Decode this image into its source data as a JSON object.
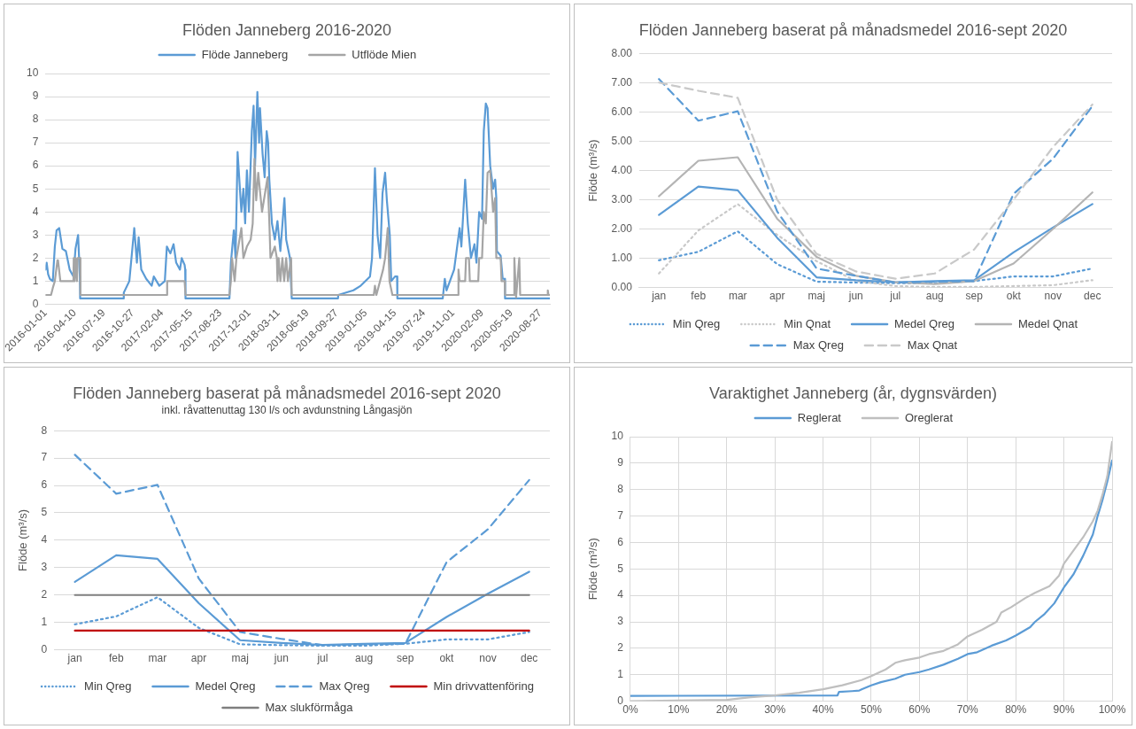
{
  "chart_data": [
    {
      "type": "line",
      "title": "Flöden Janneberg 2016-2020",
      "legend": "top",
      "grid": "y",
      "xlim": [
        "2016-01-01",
        "2020-09-29"
      ],
      "xticks": [
        "2016-01-01",
        "2016-04-10",
        "2016-07-19",
        "2016-10-27",
        "2017-02-04",
        "2017-05-15",
        "2017-08-23",
        "2017-12-01",
        "2018-03-11",
        "2018-06-19",
        "2018-09-27",
        "2019-01-05",
        "2019-04-15",
        "2019-07-24",
        "2019-11-01",
        "2020-02-09",
        "2020-05-19",
        "2020-08-27"
      ],
      "ylim": [
        0,
        10
      ],
      "yticks": [
        0,
        1,
        2,
        3,
        4,
        5,
        6,
        7,
        8,
        9,
        10
      ],
      "series": [
        {
          "name": "Flöde Janneberg",
          "color": "#5b9bd5",
          "x": [
            "2016-01-01",
            "2016-01-05",
            "2016-01-10",
            "2016-01-16",
            "2016-01-26",
            "2016-02-02",
            "2016-02-08",
            "2016-02-17",
            "2016-02-28",
            "2016-03-11",
            "2016-03-24",
            "2016-04-06",
            "2016-04-13",
            "2016-04-22",
            "2016-04-28",
            "2016-04-29",
            "2016-09-25",
            "2016-09-26",
            "2016-10-15",
            "2016-11-01",
            "2016-11-10",
            "2016-11-16",
            "2016-11-25",
            "2016-12-12",
            "2016-12-31",
            "2017-01-07",
            "2017-01-26",
            "2017-02-14",
            "2017-02-21",
            "2017-03-05",
            "2017-03-16",
            "2017-03-25",
            "2017-04-07",
            "2017-04-13",
            "2017-04-23",
            "2017-04-25",
            "2017-04-26",
            "2017-09-24",
            "2017-09-29",
            "2017-10-09",
            "2017-10-15",
            "2017-10-22",
            "2017-11-04",
            "2017-11-11",
            "2017-11-17",
            "2017-11-23",
            "2017-11-30",
            "2017-12-10",
            "2017-12-16",
            "2017-12-21",
            "2017-12-29",
            "2018-01-04",
            "2018-01-07",
            "2018-01-16",
            "2018-01-23",
            "2018-01-30",
            "2018-02-04",
            "2018-02-08",
            "2018-02-17",
            "2018-02-27",
            "2018-03-08",
            "2018-03-18",
            "2018-04-01",
            "2018-04-07",
            "2018-04-20",
            "2018-04-26",
            "2018-10-02",
            "2018-10-03",
            "2018-11-24",
            "2018-12-19",
            "2019-01-20",
            "2019-01-27",
            "2019-02-06",
            "2019-02-15",
            "2019-02-24",
            "2019-03-04",
            "2019-03-13",
            "2019-03-19",
            "2019-03-29",
            "2019-04-03",
            "2019-04-16",
            "2019-04-23",
            "2019-04-24",
            "2019-09-27",
            "2019-10-04",
            "2019-10-10",
            "2019-11-05",
            "2019-11-24",
            "2019-11-30",
            "2019-12-13",
            "2019-12-22",
            "2020-01-02",
            "2020-01-14",
            "2020-01-21",
            "2020-01-30",
            "2020-02-09",
            "2020-02-15",
            "2020-02-22",
            "2020-02-28",
            "2020-03-08",
            "2020-03-18",
            "2020-03-25",
            "2020-03-29",
            "2020-03-31",
            "2020-04-13",
            "2020-04-20",
            "2020-04-27",
            "2020-04-28",
            "2020-09-29"
          ],
          "values": [
            1.5,
            1.8,
            1.3,
            1.1,
            1.0,
            2.5,
            3.2,
            3.3,
            2.4,
            2.3,
            1.5,
            1.2,
            2.4,
            3.0,
            1.2,
            0.25,
            0.25,
            0.5,
            1.0,
            3.3,
            1.8,
            2.9,
            1.5,
            1.1,
            0.8,
            1.2,
            0.8,
            1.0,
            2.5,
            2.2,
            2.6,
            1.8,
            1.5,
            2.0,
            1.7,
            1.5,
            0.25,
            0.25,
            1.8,
            3.2,
            2.0,
            6.6,
            4.0,
            5.0,
            3.5,
            5.8,
            4.0,
            7.5,
            8.6,
            6.0,
            9.2,
            7.0,
            8.5,
            6.5,
            5.5,
            7.5,
            7.0,
            5.4,
            3.5,
            2.8,
            3.6,
            2.3,
            4.6,
            2.8,
            2.0,
            0.25,
            0.25,
            0.4,
            0.6,
            0.8,
            1.2,
            2.0,
            5.9,
            3.0,
            2.0,
            4.8,
            5.7,
            4.5,
            3.0,
            1.0,
            1.2,
            1.2,
            0.25,
            0.25,
            1.1,
            0.6,
            1.5,
            3.3,
            2.5,
            5.4,
            3.5,
            2.0,
            2.6,
            1.8,
            4.0,
            3.7,
            7.5,
            8.7,
            8.5,
            6.0,
            5.0,
            5.4,
            4.6,
            2.3,
            2.1,
            1.1,
            1.1,
            0.25,
            0.25
          ]
        },
        {
          "name": "Utflöde Mien",
          "color": "#a5a5a5",
          "x": [
            "2016-01-01",
            "2016-01-20",
            "2016-01-26",
            "2016-02-02",
            "2016-02-11",
            "2016-02-13",
            "2016-02-21",
            "2016-04-06",
            "2016-04-07",
            "2016-04-10",
            "2016-04-13",
            "2016-04-18",
            "2016-04-20",
            "2016-04-29",
            "2016-04-30",
            "2017-02-21",
            "2017-02-22",
            "2017-04-23",
            "2017-04-26",
            "2017-09-24",
            "2017-09-29",
            "2017-10-03",
            "2017-10-12",
            "2017-10-18",
            "2017-11-04",
            "2017-11-11",
            "2017-11-23",
            "2017-12-06",
            "2017-12-13",
            "2017-12-19",
            "2017-12-25",
            "2018-01-01",
            "2018-01-14",
            "2018-02-02",
            "2018-02-08",
            "2018-02-12",
            "2018-02-27",
            "2018-03-06",
            "2018-03-08",
            "2018-03-12",
            "2018-03-18",
            "2018-03-25",
            "2018-03-31",
            "2018-04-07",
            "2018-04-13",
            "2018-04-24",
            "2018-04-26",
            "2019-02-02",
            "2019-02-06",
            "2019-02-11",
            "2019-03-06",
            "2019-03-13",
            "2019-03-22",
            "2019-03-28",
            "2019-04-07",
            "2019-11-18",
            "2019-11-20",
            "2019-11-24",
            "2019-12-13",
            "2019-12-16",
            "2019-12-26",
            "2019-12-29",
            "2020-01-27",
            "2020-01-30",
            "2020-02-09",
            "2020-02-15",
            "2020-02-22",
            "2020-02-28",
            "2020-03-08",
            "2020-03-18",
            "2020-03-25",
            "2020-03-29",
            "2020-04-13",
            "2020-04-16",
            "2020-04-27",
            "2020-04-28",
            "2020-05-28",
            "2020-05-30",
            "2020-06-05",
            "2020-06-16",
            "2020-06-19",
            "2020-09-20",
            "2020-09-22",
            "2020-09-24",
            "2020-09-29"
          ],
          "values": [
            0.4,
            0.4,
            0.7,
            1.0,
            1.9,
            1.9,
            1.0,
            1.0,
            2.0,
            1.0,
            2.0,
            1.0,
            2.0,
            2.0,
            0.4,
            0.4,
            1.0,
            1.0,
            0.4,
            0.4,
            1.0,
            2.0,
            1.0,
            2.0,
            3.3,
            2.0,
            2.5,
            2.8,
            3.5,
            6.3,
            4.5,
            5.7,
            4.0,
            5.5,
            3.6,
            2.0,
            2.5,
            2.0,
            1.0,
            2.0,
            1.0,
            2.0,
            1.0,
            2.0,
            1.0,
            2.0,
            0.4,
            0.4,
            0.8,
            0.4,
            1.5,
            2.0,
            3.3,
            1.0,
            0.4,
            0.4,
            1.5,
            1.0,
            1.0,
            2.0,
            2.0,
            1.0,
            1.0,
            2.0,
            2.0,
            4.0,
            3.5,
            5.7,
            5.8,
            4.0,
            4.6,
            2.0,
            2.0,
            1.0,
            1.0,
            0.4,
            0.4,
            2.0,
            0.3,
            2.0,
            0.4,
            0.4,
            0.6,
            0.4,
            0.4
          ]
        }
      ]
    },
    {
      "type": "line",
      "title": "Flöden Janneberg baserat på månadsmedel 2016-sept 2020",
      "ylabel": "Flöde (m³/s)",
      "legend": "bottom",
      "grid": "y",
      "categories": [
        "jan",
        "feb",
        "mar",
        "apr",
        "maj",
        "jun",
        "jul",
        "aug",
        "sep",
        "okt",
        "nov",
        "dec"
      ],
      "ylim": [
        0,
        8
      ],
      "yticks": [
        {
          "value": 0,
          "label": "0.00"
        },
        {
          "value": 1,
          "label": "1.00"
        },
        {
          "value": 2,
          "label": "2.00"
        },
        {
          "value": 3,
          "label": "3.00"
        },
        {
          "value": 4,
          "label": "4.00"
        },
        {
          "value": 5,
          "label": "5.00"
        },
        {
          "value": 6,
          "label": "6.00"
        },
        {
          "value": 7,
          "label": "7.00"
        },
        {
          "value": 8,
          "label": "8.00"
        }
      ],
      "series": [
        {
          "name": "Min Qreg",
          "color": "#5b9bd5",
          "line_style": "dotted",
          "values": [
            0.93,
            1.22,
            1.92,
            0.8,
            0.2,
            0.17,
            0.15,
            0.15,
            0.22,
            0.38,
            0.38,
            0.65
          ]
        },
        {
          "name": "Min Qnat",
          "color": "#c9c9c9",
          "line_style": "dotted",
          "values": [
            0.48,
            1.95,
            2.85,
            1.8,
            0.9,
            0.22,
            0.05,
            0.02,
            0.02,
            0.05,
            0.08,
            0.25
          ]
        },
        {
          "name": "Medel Qreg",
          "color": "#5b9bd5",
          "line_style": "solid",
          "values": [
            2.48,
            3.45,
            3.32,
            1.7,
            0.35,
            0.25,
            0.18,
            0.22,
            0.25,
            1.2,
            2.05,
            2.85
          ]
        },
        {
          "name": "Medel Qnat",
          "color": "#b4b4b4",
          "line_style": "solid",
          "values": [
            3.12,
            4.33,
            4.45,
            2.35,
            1.05,
            0.4,
            0.18,
            0.12,
            0.22,
            0.82,
            2.0,
            3.25
          ]
        },
        {
          "name": "Max Qreg",
          "color": "#5b9bd5",
          "line_style": "dashed",
          "values": [
            7.12,
            5.7,
            6.02,
            2.6,
            0.65,
            0.4,
            0.17,
            0.2,
            0.22,
            3.2,
            4.4,
            6.2
          ]
        },
        {
          "name": "Max Qnat",
          "color": "#c9c9c9",
          "line_style": "dashed",
          "values": [
            7.0,
            6.72,
            6.48,
            3.0,
            1.15,
            0.55,
            0.3,
            0.48,
            1.3,
            3.0,
            4.8,
            6.25
          ]
        }
      ]
    },
    {
      "type": "line",
      "title": "Flöden Janneberg baserat på månadsmedel 2016-sept 2020",
      "subtitle": "inkl. råvattenuttag 130 l/s och avdunstning Långasjön",
      "ylabel": "Flöde (m³/s)",
      "legend": "bottom",
      "grid": "y",
      "categories": [
        "jan",
        "feb",
        "mar",
        "apr",
        "maj",
        "jun",
        "jul",
        "aug",
        "sep",
        "okt",
        "nov",
        "dec"
      ],
      "ylim": [
        0,
        8
      ],
      "yticks": [
        0,
        1,
        2,
        3,
        4,
        5,
        6,
        7,
        8
      ],
      "series": [
        {
          "name": "Min Qreg",
          "color": "#5b9bd5",
          "line_style": "dotted",
          "values": [
            0.93,
            1.22,
            1.92,
            0.8,
            0.2,
            0.17,
            0.15,
            0.15,
            0.22,
            0.38,
            0.38,
            0.65
          ]
        },
        {
          "name": "Medel Qreg",
          "color": "#5b9bd5",
          "line_style": "solid",
          "values": [
            2.48,
            3.45,
            3.32,
            1.7,
            0.35,
            0.25,
            0.18,
            0.22,
            0.25,
            1.2,
            2.05,
            2.85
          ]
        },
        {
          "name": "Max Qreg",
          "color": "#5b9bd5",
          "line_style": "dashed",
          "values": [
            7.12,
            5.7,
            6.02,
            2.6,
            0.65,
            0.4,
            0.17,
            0.2,
            0.22,
            3.2,
            4.4,
            6.2
          ]
        },
        {
          "name": "Min drivvattenföring",
          "color": "#c00000",
          "line_style": "solid",
          "values": [
            0.7,
            0.7,
            0.7,
            0.7,
            0.7,
            0.7,
            0.7,
            0.7,
            0.7,
            0.7,
            0.7,
            0.7
          ]
        },
        {
          "name": "Max slukförmåga",
          "color": "#7f7f7f",
          "line_style": "solid",
          "values": [
            2.0,
            2.0,
            2.0,
            2.0,
            2.0,
            2.0,
            2.0,
            2.0,
            2.0,
            2.0,
            2.0,
            2.0
          ]
        }
      ]
    },
    {
      "type": "line",
      "title": "Varaktighet Janneberg (år, dygnsvärden)",
      "ylabel": "Flöde (m³/s)",
      "legend": "top",
      "grid": true,
      "xlim": [
        0,
        100
      ],
      "xticks": [
        {
          "value": 0,
          "label": "0%"
        },
        {
          "value": 10,
          "label": "10%"
        },
        {
          "value": 20,
          "label": "20%"
        },
        {
          "value": 30,
          "label": "30%"
        },
        {
          "value": 40,
          "label": "40%"
        },
        {
          "value": 50,
          "label": "50%"
        },
        {
          "value": 60,
          "label": "60%"
        },
        {
          "value": 70,
          "label": "70%"
        },
        {
          "value": 80,
          "label": "80%"
        },
        {
          "value": 90,
          "label": "90%"
        },
        {
          "value": 100,
          "label": "100%"
        }
      ],
      "ylim": [
        0,
        10
      ],
      "yticks": [
        0,
        1,
        2,
        3,
        4,
        5,
        6,
        7,
        8,
        9,
        10
      ],
      "series": [
        {
          "name": "Reglerat",
          "color": "#5b9bd5",
          "x": [
            0,
            43,
            43.3,
            46,
            47.5,
            48,
            50,
            52,
            55,
            57,
            60,
            62,
            65,
            68,
            70,
            72,
            75,
            78,
            80,
            83,
            84,
            86,
            88,
            89,
            90,
            92,
            94,
            96,
            97,
            98,
            99,
            100
          ],
          "values": [
            0.2,
            0.22,
            0.35,
            0.38,
            0.4,
            0.45,
            0.6,
            0.72,
            0.85,
            1.0,
            1.1,
            1.2,
            1.38,
            1.6,
            1.78,
            1.85,
            2.1,
            2.3,
            2.48,
            2.8,
            3.0,
            3.3,
            3.7,
            4.0,
            4.3,
            4.8,
            5.5,
            6.3,
            7.0,
            7.6,
            8.3,
            9.1
          ]
        },
        {
          "name": "Oreglerat",
          "color": "#bfbfbf",
          "x": [
            0,
            20,
            25,
            30,
            35,
            40,
            44,
            48,
            50,
            53,
            55,
            57,
            60,
            62,
            65,
            68,
            70,
            73,
            76,
            77,
            79,
            82,
            84,
            87,
            89,
            90,
            92,
            94,
            96,
            97,
            98,
            99,
            100
          ],
          "values": [
            0.0,
            0.05,
            0.15,
            0.22,
            0.32,
            0.45,
            0.6,
            0.8,
            0.95,
            1.2,
            1.45,
            1.55,
            1.65,
            1.78,
            1.9,
            2.15,
            2.45,
            2.7,
            3.0,
            3.35,
            3.55,
            3.9,
            4.1,
            4.35,
            4.75,
            5.2,
            5.7,
            6.2,
            6.8,
            7.2,
            7.8,
            8.5,
            9.8
          ]
        }
      ]
    }
  ]
}
